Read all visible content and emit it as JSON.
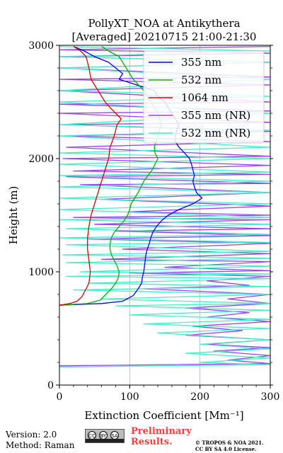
{
  "chart_data": {
    "type": "line",
    "title": "PollyXT_NOA at Antikythera",
    "subtitle": "[Averaged] 20210715 21:00-21:30",
    "xlabel": "Extinction Coefficient [Mm⁻¹]",
    "ylabel": "Height (m)",
    "xlim": [
      0,
      300
    ],
    "ylim": [
      0,
      3000
    ],
    "xticks": [
      "0",
      "100",
      "200",
      "300"
    ],
    "yticks": [
      "0",
      "1000",
      "2000",
      "3000"
    ],
    "grid": "vertical",
    "legend_position": "top-right",
    "series": [
      {
        "name": "355 nm",
        "color": "#0000ee",
        "points": [
          [
            0,
            705
          ],
          [
            60,
            720
          ],
          [
            90,
            740
          ],
          [
            105,
            790
          ],
          [
            112,
            850
          ],
          [
            117,
            900
          ],
          [
            118,
            950
          ],
          [
            120,
            1000
          ],
          [
            121,
            1050
          ],
          [
            122,
            1100
          ],
          [
            123,
            1150
          ],
          [
            125,
            1200
          ],
          [
            128,
            1250
          ],
          [
            130,
            1300
          ],
          [
            133,
            1350
          ],
          [
            138,
            1400
          ],
          [
            145,
            1450
          ],
          [
            155,
            1500
          ],
          [
            170,
            1550
          ],
          [
            190,
            1600
          ],
          [
            203,
            1650
          ],
          [
            195,
            1700
          ],
          [
            192,
            1750
          ],
          [
            190,
            1800
          ],
          [
            192,
            1850
          ],
          [
            190,
            1900
          ],
          [
            188,
            1950
          ],
          [
            185,
            2000
          ],
          [
            178,
            2050
          ],
          [
            170,
            2100
          ],
          [
            165,
            2150
          ],
          [
            165,
            2200
          ],
          [
            167,
            2250
          ],
          [
            170,
            2300
          ],
          [
            165,
            2350
          ],
          [
            160,
            2400
          ],
          [
            155,
            2450
          ],
          [
            150,
            2500
          ],
          [
            140,
            2550
          ],
          [
            135,
            2600
          ],
          [
            85,
            2700
          ],
          [
            90,
            2750
          ],
          [
            80,
            2800
          ],
          [
            70,
            2850
          ],
          [
            50,
            2900
          ],
          [
            35,
            2950
          ],
          [
            20,
            2990
          ]
        ]
      },
      {
        "name": "532 nm",
        "color": "#00b000",
        "points": [
          [
            0,
            705
          ],
          [
            40,
            720
          ],
          [
            58,
            750
          ],
          [
            66,
            800
          ],
          [
            74,
            850
          ],
          [
            80,
            900
          ],
          [
            84,
            950
          ],
          [
            85,
            1000
          ],
          [
            82,
            1050
          ],
          [
            78,
            1100
          ],
          [
            74,
            1150
          ],
          [
            72,
            1200
          ],
          [
            72,
            1250
          ],
          [
            74,
            1300
          ],
          [
            78,
            1350
          ],
          [
            85,
            1400
          ],
          [
            92,
            1450
          ],
          [
            97,
            1500
          ],
          [
            100,
            1550
          ],
          [
            102,
            1600
          ],
          [
            112,
            1700
          ],
          [
            120,
            1800
          ],
          [
            132,
            1900
          ],
          [
            140,
            2000
          ],
          [
            136,
            2050
          ],
          [
            135,
            2100
          ],
          [
            140,
            2200
          ],
          [
            145,
            2300
          ],
          [
            140,
            2400
          ],
          [
            130,
            2500
          ],
          [
            120,
            2600
          ],
          [
            105,
            2700
          ],
          [
            95,
            2800
          ],
          [
            85,
            2900
          ],
          [
            70,
            2950
          ],
          [
            60,
            2990
          ]
        ]
      },
      {
        "name": "1064 nm",
        "color": "#dd0000",
        "points": [
          [
            0,
            705
          ],
          [
            15,
            720
          ],
          [
            25,
            740
          ],
          [
            32,
            780
          ],
          [
            38,
            850
          ],
          [
            42,
            900
          ],
          [
            44,
            1000
          ],
          [
            42,
            1100
          ],
          [
            40,
            1200
          ],
          [
            40,
            1300
          ],
          [
            42,
            1400
          ],
          [
            45,
            1500
          ],
          [
            50,
            1600
          ],
          [
            55,
            1700
          ],
          [
            60,
            1800
          ],
          [
            65,
            1900
          ],
          [
            70,
            2000
          ],
          [
            72,
            2100
          ],
          [
            78,
            2200
          ],
          [
            82,
            2300
          ],
          [
            88,
            2350
          ],
          [
            80,
            2400
          ],
          [
            72,
            2450
          ],
          [
            65,
            2500
          ],
          [
            55,
            2600
          ],
          [
            45,
            2700
          ],
          [
            42,
            2800
          ],
          [
            38,
            2900
          ],
          [
            30,
            2950
          ],
          [
            20,
            2990
          ]
        ]
      },
      {
        "name": "355 nm (NR)",
        "color": "#9b3ff2",
        "points": [
          [
            0,
            170
          ],
          [
            300,
            190
          ],
          [
            240,
            220
          ],
          [
            300,
            260
          ],
          [
            220,
            300
          ],
          [
            300,
            330
          ],
          [
            210,
            360
          ],
          [
            300,
            400
          ],
          [
            180,
            440
          ],
          [
            260,
            480
          ],
          [
            190,
            520
          ],
          [
            300,
            560
          ],
          [
            210,
            600
          ],
          [
            270,
            640
          ],
          [
            180,
            680
          ],
          [
            300,
            720
          ],
          [
            240,
            760
          ],
          [
            300,
            800
          ],
          [
            120,
            850
          ],
          [
            270,
            880
          ],
          [
            210,
            920
          ],
          [
            300,
            960
          ],
          [
            100,
            990
          ],
          [
            300,
            1010
          ],
          [
            150,
            1040
          ],
          [
            300,
            1090
          ],
          [
            60,
            1110
          ],
          [
            300,
            1160
          ],
          [
            90,
            1200
          ],
          [
            300,
            1250
          ],
          [
            40,
            1290
          ],
          [
            300,
            1320
          ],
          [
            80,
            1360
          ],
          [
            300,
            1380
          ],
          [
            50,
            1420
          ],
          [
            300,
            1460
          ],
          [
            20,
            1480
          ],
          [
            300,
            1500
          ],
          [
            100,
            1530
          ],
          [
            300,
            1580
          ],
          [
            60,
            1640
          ],
          [
            300,
            1700
          ],
          [
            30,
            1770
          ],
          [
            300,
            1780
          ],
          [
            10,
            1840
          ],
          [
            300,
            1860
          ],
          [
            20,
            1890
          ],
          [
            300,
            1940
          ],
          [
            5,
            2000
          ],
          [
            300,
            2020
          ],
          [
            10,
            2100
          ],
          [
            300,
            2150
          ],
          [
            10,
            2200
          ],
          [
            300,
            2240
          ],
          [
            5,
            2300
          ],
          [
            300,
            2320
          ],
          [
            0,
            2400
          ],
          [
            300,
            2420
          ],
          [
            0,
            2480
          ],
          [
            300,
            2500
          ],
          [
            0,
            2600
          ],
          [
            300,
            2650
          ],
          [
            0,
            2700
          ],
          [
            300,
            2720
          ],
          [
            0,
            2800
          ],
          [
            300,
            2850
          ],
          [
            0,
            2900
          ],
          [
            300,
            2930
          ],
          [
            0,
            2960
          ],
          [
            300,
            2990
          ]
        ]
      },
      {
        "name": "532 nm (NR)",
        "color": "#3ff0c8",
        "points": [
          [
            0,
            160
          ],
          [
            300,
            180
          ],
          [
            200,
            200
          ],
          [
            300,
            240
          ],
          [
            180,
            280
          ],
          [
            300,
            320
          ],
          [
            200,
            360
          ],
          [
            300,
            400
          ],
          [
            140,
            460
          ],
          [
            300,
            500
          ],
          [
            120,
            540
          ],
          [
            300,
            580
          ],
          [
            100,
            620
          ],
          [
            300,
            660
          ],
          [
            80,
            700
          ],
          [
            300,
            720
          ],
          [
            60,
            760
          ],
          [
            300,
            800
          ],
          [
            20,
            840
          ],
          [
            300,
            870
          ],
          [
            40,
            900
          ],
          [
            300,
            940
          ],
          [
            10,
            960
          ],
          [
            300,
            980
          ],
          [
            30,
            1000
          ],
          [
            300,
            1050
          ],
          [
            10,
            1080
          ],
          [
            300,
            1120
          ],
          [
            5,
            1150
          ],
          [
            300,
            1180
          ],
          [
            10,
            1240
          ],
          [
            300,
            1260
          ],
          [
            0,
            1300
          ],
          [
            300,
            1330
          ],
          [
            10,
            1380
          ],
          [
            300,
            1420
          ],
          [
            0,
            1460
          ],
          [
            300,
            1480
          ],
          [
            0,
            1550
          ],
          [
            300,
            1600
          ],
          [
            0,
            1650
          ],
          [
            300,
            1700
          ],
          [
            0,
            1750
          ],
          [
            300,
            1800
          ],
          [
            0,
            1850
          ],
          [
            300,
            1880
          ],
          [
            0,
            1950
          ],
          [
            300,
            2000
          ],
          [
            0,
            2050
          ],
          [
            300,
            2100
          ],
          [
            0,
            2200
          ],
          [
            300,
            2250
          ],
          [
            0,
            2300
          ],
          [
            300,
            2400
          ],
          [
            0,
            2500
          ],
          [
            300,
            2550
          ],
          [
            0,
            2600
          ],
          [
            300,
            2700
          ],
          [
            0,
            2800
          ],
          [
            300,
            2850
          ],
          [
            0,
            2900
          ],
          [
            300,
            2950
          ],
          [
            0,
            2990
          ]
        ]
      }
    ]
  },
  "footer": {
    "version": "Version: 2.0",
    "method": "Method: Raman",
    "cc_badge": "cc by sa",
    "preliminary_line1": "Preliminary",
    "preliminary_line2": "Results.",
    "copyright_line1": "© TROPOS & NOA 2021.",
    "copyright_line2": "CC BY SA 4.0 License."
  }
}
